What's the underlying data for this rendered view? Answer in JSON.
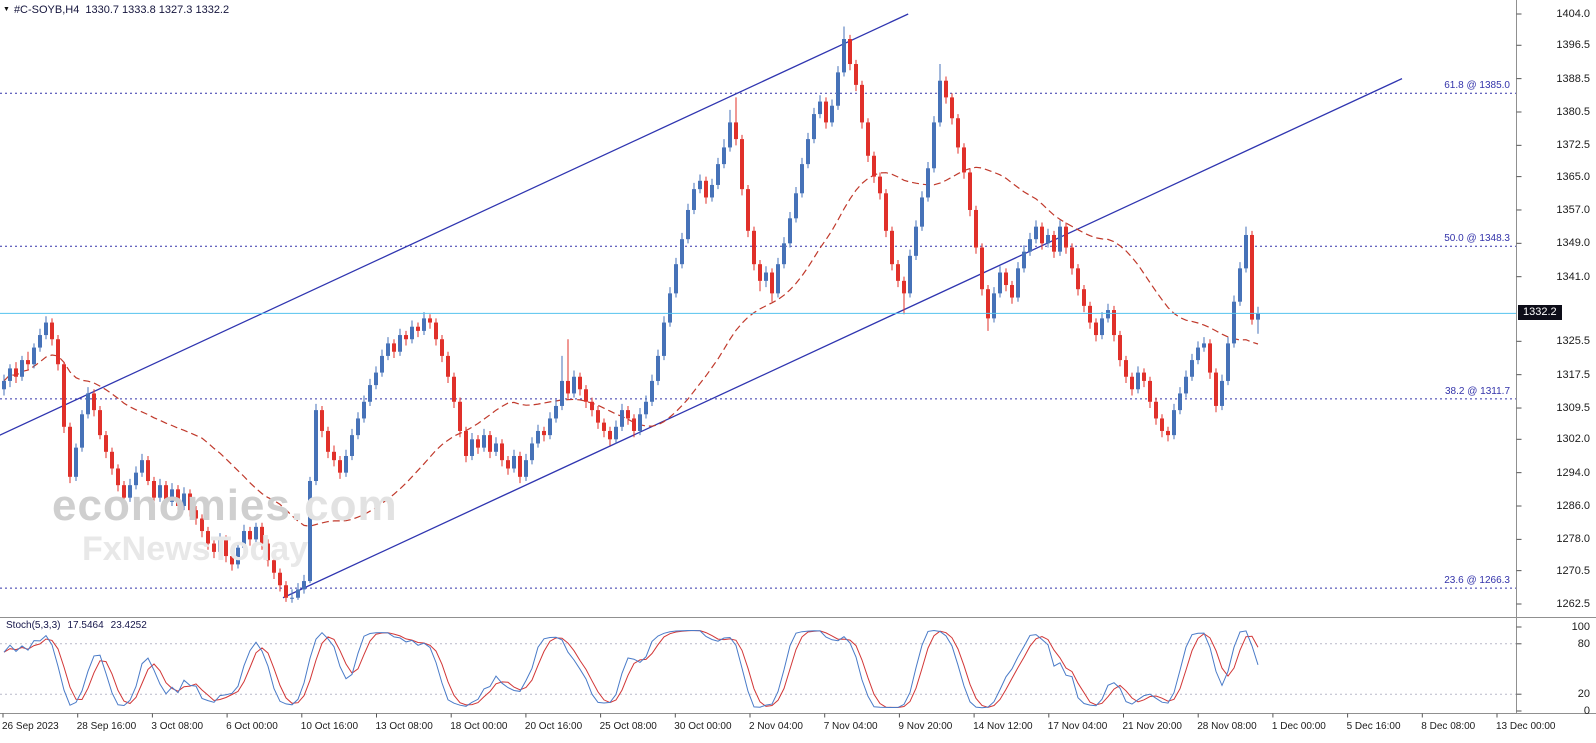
{
  "window": {
    "symbol_label": "#C-SOYB,H4",
    "ohlc_label": "1330.7 1333.8 1327.3 1332.2",
    "open": "1330.7",
    "high": "1333.8",
    "low": "1327.3",
    "close": "1332.2"
  },
  "watermark": {
    "brand": "economies",
    "brand_suffix": ".com",
    "subtitle": "FxNewsToday"
  },
  "price_axis": {
    "ticks": [
      1404.0,
      1396.5,
      1388.5,
      1380.5,
      1372.5,
      1365.0,
      1357.0,
      1349.0,
      1341.0,
      1325.5,
      1317.5,
      1309.5,
      1302.0,
      1294.0,
      1286.0,
      1278.0,
      1270.5,
      1262.5
    ],
    "current_tag": "1332.2"
  },
  "time_axis": {
    "labels": [
      "26 Sep 2023",
      "28 Sep 16:00",
      "3 Oct 08:00",
      "6 Oct 00:00",
      "10 Oct 16:00",
      "13 Oct 08:00",
      "18 Oct 00:00",
      "20 Oct 16:00",
      "25 Oct 08:00",
      "30 Oct 00:00",
      "2 Nov 04:00",
      "7 Nov 04:00",
      "9 Nov 20:00",
      "14 Nov 12:00",
      "17 Nov 04:00",
      "21 Nov 20:00",
      "28 Nov 08:00",
      "1 Dec 00:00",
      "5 Dec 16:00",
      "8 Dec 08:00",
      "13 Dec 00:00"
    ]
  },
  "stoch_panel": {
    "label": "Stoch(5,3,3)",
    "k_value": "17.5464",
    "d_value": "23.4252",
    "axis": [
      100,
      80,
      20,
      0
    ]
  },
  "colors": {
    "up": "#4672b8",
    "down": "#e0302a",
    "ma": "#c0392b",
    "channel": "#2f35b0",
    "fib": "#3333aa",
    "price_line": "#55c3ee",
    "tag_bg": "#0d0d18",
    "tag_text": "#ffffff",
    "stoch_k": "#4a7bc8",
    "stoch_d": "#d23737",
    "axis_text": "#1c1c1c",
    "separator": "#909090",
    "watermark1": "#cfcfcf",
    "watermark2": "#e8e8e8"
  },
  "chart_data": {
    "type": "candlestick",
    "symbol": "#C-SOYB",
    "timeframe": "H4",
    "title": "#C-SOYB,H4 1330.7 1333.8 1327.3 1332.2",
    "ylim": [
      1262.5,
      1404.0
    ],
    "current_price": 1332.2,
    "legend_position": "none",
    "grid": false,
    "fib_levels": [
      {
        "label": "61.8 @ 1385.0",
        "ratio": 61.8,
        "price": 1385.0
      },
      {
        "label": "50.0 @ 1348.3",
        "ratio": 50.0,
        "price": 1348.3
      },
      {
        "label": "38.2 @ 1311.7",
        "ratio": 38.2,
        "price": 1311.7
      },
      {
        "label": "23.6 @ 1266.3",
        "ratio": 23.6,
        "price": 1266.3
      }
    ],
    "trendlines": [
      {
        "name": "channel-upper",
        "i1": -0.7,
        "price1": 1303.0,
        "i2": 150.7,
        "price2": 1404.0
      },
      {
        "name": "channel-lower",
        "i1": 46.5,
        "price1": 1264.0,
        "i2": 233.0,
        "price2": 1388.5
      }
    ],
    "moving_average": {
      "method": "simple",
      "period": 34,
      "style": "dashed"
    },
    "stochastic": {
      "k_period": 5,
      "slowing": 3,
      "d_period": 3,
      "current_k": 17.5464,
      "current_d": 23.4252,
      "levels": [
        20,
        80
      ]
    },
    "candles": [
      [
        1314,
        1317.5,
        1312.5,
        1316
      ],
      [
        1316,
        1320,
        1314.5,
        1319
      ],
      [
        1319,
        1320.5,
        1315.5,
        1317
      ],
      [
        1317,
        1322,
        1316,
        1321
      ],
      [
        1321,
        1323,
        1318.5,
        1320
      ],
      [
        1320,
        1325,
        1319,
        1324
      ],
      [
        1324,
        1328.5,
        1323,
        1327
      ],
      [
        1327,
        1331.5,
        1326,
        1330
      ],
      [
        1330,
        1331,
        1324.5,
        1326
      ],
      [
        1326,
        1327,
        1318.5,
        1320
      ],
      [
        1320,
        1320.5,
        1303.5,
        1305
      ],
      [
        1305,
        1306,
        1291.5,
        1293
      ],
      [
        1293,
        1301,
        1292,
        1300
      ],
      [
        1300,
        1309,
        1299,
        1308
      ],
      [
        1308,
        1314.5,
        1307,
        1313
      ],
      [
        1313,
        1314,
        1307.5,
        1309
      ],
      [
        1309,
        1310,
        1302,
        1303
      ],
      [
        1303,
        1304,
        1297.5,
        1299
      ],
      [
        1299,
        1300,
        1293.5,
        1295
      ],
      [
        1295,
        1296,
        1289.5,
        1291
      ],
      [
        1291,
        1292,
        1286.5,
        1288
      ],
      [
        1288,
        1292.5,
        1287,
        1291
      ],
      [
        1291,
        1295.5,
        1290,
        1294
      ],
      [
        1294,
        1298.5,
        1293,
        1297
      ],
      [
        1297,
        1298,
        1291,
        1292
      ],
      [
        1292,
        1293,
        1286.5,
        1288
      ],
      [
        1288,
        1292.5,
        1287,
        1291
      ],
      [
        1291,
        1292,
        1285.5,
        1287
      ],
      [
        1287,
        1291.5,
        1286,
        1290
      ],
      [
        1290,
        1291,
        1284.5,
        1286
      ],
      [
        1286,
        1290.5,
        1285,
        1289
      ],
      [
        1289,
        1290,
        1283.5,
        1285
      ],
      [
        1285,
        1286,
        1281.5,
        1283
      ],
      [
        1283,
        1284,
        1278.5,
        1280
      ],
      [
        1280,
        1281,
        1275.5,
        1277
      ],
      [
        1277,
        1278,
        1273.5,
        1275
      ],
      [
        1275,
        1279.5,
        1274,
        1278
      ],
      [
        1278,
        1279,
        1272.5,
        1274
      ],
      [
        1274,
        1275,
        1270.5,
        1272
      ],
      [
        1272,
        1277,
        1271,
        1276
      ],
      [
        1276,
        1281.5,
        1275,
        1280
      ],
      [
        1280,
        1281,
        1276.5,
        1278
      ],
      [
        1278,
        1282,
        1277,
        1281
      ],
      [
        1281,
        1282,
        1275.5,
        1277
      ],
      [
        1277,
        1278,
        1271.5,
        1273
      ],
      [
        1273,
        1274,
        1268.5,
        1270
      ],
      [
        1270,
        1271,
        1265.5,
        1267
      ],
      [
        1267,
        1268,
        1263,
        1264
      ],
      [
        1264,
        1266,
        1262.8,
        1264
      ],
      [
        1264,
        1267.5,
        1263.5,
        1266
      ],
      [
        1266,
        1269.5,
        1265,
        1268
      ],
      [
        1268,
        1293,
        1267.5,
        1292
      ],
      [
        1292,
        1310.5,
        1291,
        1309
      ],
      [
        1309,
        1310,
        1302.5,
        1304
      ],
      [
        1304,
        1305,
        1297.5,
        1299
      ],
      [
        1299,
        1300.5,
        1295.5,
        1297
      ],
      [
        1297,
        1298,
        1292.5,
        1294
      ],
      [
        1294,
        1299.5,
        1293,
        1298
      ],
      [
        1298,
        1304.5,
        1297,
        1303
      ],
      [
        1303,
        1308.5,
        1302,
        1307
      ],
      [
        1307,
        1312.5,
        1306,
        1311
      ],
      [
        1311,
        1316.5,
        1310,
        1315
      ],
      [
        1315,
        1319.5,
        1314,
        1318
      ],
      [
        1318,
        1323.5,
        1317,
        1322
      ],
      [
        1322,
        1326.5,
        1321,
        1325
      ],
      [
        1325,
        1326,
        1321.5,
        1323
      ],
      [
        1323,
        1328.5,
        1322,
        1327
      ],
      [
        1327,
        1328,
        1324.5,
        1326
      ],
      [
        1326,
        1330.5,
        1325,
        1329
      ],
      [
        1329,
        1330,
        1326.5,
        1328
      ],
      [
        1328,
        1332.5,
        1327,
        1331
      ],
      [
        1331,
        1332,
        1328.5,
        1330
      ],
      [
        1330,
        1331,
        1324.5,
        1326
      ],
      [
        1326,
        1327,
        1320.5,
        1322
      ],
      [
        1322,
        1323,
        1315.5,
        1317
      ],
      [
        1317,
        1318,
        1309.5,
        1311
      ],
      [
        1311,
        1312,
        1302.5,
        1304
      ],
      [
        1304,
        1305,
        1296.5,
        1298
      ],
      [
        1298,
        1303.5,
        1297,
        1302
      ],
      [
        1302,
        1303,
        1298.5,
        1300
      ],
      [
        1300,
        1304.5,
        1299,
        1303
      ],
      [
        1303,
        1304,
        1297.5,
        1299
      ],
      [
        1299,
        1302.5,
        1298,
        1301
      ],
      [
        1301,
        1302,
        1295.5,
        1297
      ],
      [
        1297,
        1298,
        1293.5,
        1295
      ],
      [
        1295,
        1299.5,
        1294,
        1298
      ],
      [
        1298,
        1299,
        1291.5,
        1293
      ],
      [
        1293,
        1298.5,
        1292,
        1297
      ],
      [
        1297,
        1302.5,
        1296,
        1301
      ],
      [
        1301,
        1305.5,
        1300,
        1304
      ],
      [
        1304,
        1305,
        1301.5,
        1303
      ],
      [
        1303,
        1308.5,
        1302,
        1307
      ],
      [
        1307,
        1311.5,
        1306,
        1310
      ],
      [
        1310,
        1322,
        1309,
        1316
      ],
      [
        1316,
        1326,
        1311.5,
        1313
      ],
      [
        1313,
        1318.5,
        1312,
        1317
      ],
      [
        1317,
        1318,
        1312.5,
        1314
      ],
      [
        1314,
        1315,
        1309.5,
        1311
      ],
      [
        1311,
        1312,
        1307.5,
        1309
      ],
      [
        1309,
        1310,
        1304.5,
        1306
      ],
      [
        1306,
        1307,
        1302.5,
        1304
      ],
      [
        1304,
        1305,
        1300.5,
        1302
      ],
      [
        1302,
        1306.5,
        1301,
        1305
      ],
      [
        1305,
        1310.5,
        1304,
        1309
      ],
      [
        1309,
        1310,
        1305.5,
        1307
      ],
      [
        1307,
        1308,
        1302.5,
        1304
      ],
      [
        1304,
        1309.5,
        1303,
        1308
      ],
      [
        1308,
        1312.5,
        1307,
        1311
      ],
      [
        1311,
        1317.5,
        1310,
        1316
      ],
      [
        1316,
        1323.5,
        1315,
        1322
      ],
      [
        1322,
        1331.5,
        1321,
        1330
      ],
      [
        1330,
        1338.5,
        1329,
        1337
      ],
      [
        1337,
        1345.5,
        1336,
        1344
      ],
      [
        1344,
        1351.5,
        1343,
        1350
      ],
      [
        1350,
        1358.5,
        1349,
        1357
      ],
      [
        1357,
        1363.5,
        1356,
        1362
      ],
      [
        1362,
        1365.5,
        1361,
        1364
      ],
      [
        1364,
        1365,
        1358.5,
        1360
      ],
      [
        1360,
        1364.5,
        1359,
        1363
      ],
      [
        1363,
        1369.5,
        1362,
        1368
      ],
      [
        1368,
        1374,
        1367,
        1372
      ],
      [
        1372,
        1381,
        1371,
        1378
      ],
      [
        1378,
        1384,
        1372.5,
        1374
      ],
      [
        1374,
        1375,
        1360.5,
        1362
      ],
      [
        1362,
        1363,
        1350.5,
        1352
      ],
      [
        1352,
        1353,
        1342.5,
        1344
      ],
      [
        1344,
        1345,
        1337.5,
        1340
      ],
      [
        1340,
        1343.5,
        1338.5,
        1342
      ],
      [
        1342,
        1343,
        1335,
        1337
      ],
      [
        1337,
        1345.5,
        1336,
        1344
      ],
      [
        1344,
        1350.5,
        1343,
        1349
      ],
      [
        1349,
        1356.5,
        1348,
        1355
      ],
      [
        1355,
        1362.5,
        1354,
        1361
      ],
      [
        1361,
        1369.5,
        1360,
        1368
      ],
      [
        1368,
        1375.5,
        1367,
        1374
      ],
      [
        1374,
        1381.5,
        1373,
        1380
      ],
      [
        1380,
        1384.5,
        1379,
        1383
      ],
      [
        1383,
        1384,
        1376.5,
        1378
      ],
      [
        1378,
        1383.5,
        1377,
        1382
      ],
      [
        1382,
        1391.5,
        1381,
        1390
      ],
      [
        1390,
        1401,
        1389,
        1398
      ],
      [
        1398,
        1399,
        1390.5,
        1392
      ],
      [
        1392,
        1393,
        1385.5,
        1387
      ],
      [
        1387,
        1388,
        1376.5,
        1378
      ],
      [
        1378,
        1379,
        1368.5,
        1370
      ],
      [
        1370,
        1371,
        1363.5,
        1365
      ],
      [
        1365,
        1366,
        1359.5,
        1361
      ],
      [
        1361,
        1362,
        1350.5,
        1352
      ],
      [
        1352,
        1353,
        1342.5,
        1344
      ],
      [
        1344,
        1345,
        1338.5,
        1340
      ],
      [
        1340,
        1341,
        1332,
        1337
      ],
      [
        1337,
        1347.5,
        1336,
        1346
      ],
      [
        1346,
        1354.5,
        1345,
        1353
      ],
      [
        1353,
        1361.5,
        1352,
        1360
      ],
      [
        1360,
        1368.5,
        1359,
        1367
      ],
      [
        1367,
        1379.5,
        1366,
        1378
      ],
      [
        1378,
        1392,
        1377,
        1388
      ],
      [
        1388,
        1389,
        1382.5,
        1384
      ],
      [
        1384,
        1385,
        1377.5,
        1379
      ],
      [
        1379,
        1380,
        1370.5,
        1372
      ],
      [
        1372,
        1373,
        1364.5,
        1366
      ],
      [
        1366,
        1367,
        1355.5,
        1357
      ],
      [
        1357,
        1358,
        1346.5,
        1348
      ],
      [
        1348,
        1349,
        1336.5,
        1338
      ],
      [
        1338,
        1339,
        1328,
        1331
      ],
      [
        1331,
        1338.5,
        1330,
        1337
      ],
      [
        1337,
        1343.5,
        1336,
        1342
      ],
      [
        1342,
        1343,
        1337.5,
        1339
      ],
      [
        1339,
        1340,
        1334.5,
        1336
      ],
      [
        1336,
        1344.5,
        1335,
        1343
      ],
      [
        1343,
        1348.5,
        1342,
        1347
      ],
      [
        1347,
        1351.5,
        1346,
        1350
      ],
      [
        1350,
        1354.5,
        1349,
        1353
      ],
      [
        1353,
        1354,
        1347.5,
        1349
      ],
      [
        1349,
        1352.5,
        1348,
        1351
      ],
      [
        1351,
        1352,
        1345.5,
        1347
      ],
      [
        1347,
        1354.5,
        1346,
        1353
      ],
      [
        1353,
        1354,
        1346.5,
        1348
      ],
      [
        1348,
        1349,
        1341.5,
        1343
      ],
      [
        1343,
        1344,
        1336.5,
        1338
      ],
      [
        1338,
        1339,
        1332.5,
        1334
      ],
      [
        1334,
        1335,
        1328.5,
        1330
      ],
      [
        1330,
        1331,
        1325.5,
        1327
      ],
      [
        1327,
        1332.5,
        1326,
        1331
      ],
      [
        1331,
        1334.5,
        1330,
        1333
      ],
      [
        1333,
        1334,
        1325.5,
        1327
      ],
      [
        1327,
        1328,
        1319.5,
        1321
      ],
      [
        1321,
        1322,
        1315.5,
        1317
      ],
      [
        1317,
        1318,
        1312.5,
        1314
      ],
      [
        1314,
        1319.5,
        1313,
        1318
      ],
      [
        1318,
        1319,
        1314.5,
        1316
      ],
      [
        1316,
        1317,
        1309.5,
        1311
      ],
      [
        1311,
        1312,
        1305.5,
        1307
      ],
      [
        1307,
        1308,
        1302.5,
        1304
      ],
      [
        1304,
        1305,
        1301.5,
        1303
      ],
      [
        1303,
        1310.5,
        1302,
        1309
      ],
      [
        1309,
        1314.5,
        1308,
        1313
      ],
      [
        1313,
        1318.5,
        1312,
        1317
      ],
      [
        1317,
        1322.5,
        1316,
        1321
      ],
      [
        1321,
        1325.5,
        1320,
        1324
      ],
      [
        1324,
        1326.5,
        1323,
        1325
      ],
      [
        1325,
        1326,
        1316.5,
        1318
      ],
      [
        1318,
        1319,
        1308.5,
        1310
      ],
      [
        1310,
        1317.5,
        1309,
        1316
      ],
      [
        1316,
        1326.5,
        1315,
        1325
      ],
      [
        1325,
        1336.5,
        1324,
        1335
      ],
      [
        1335,
        1344.5,
        1334,
        1343
      ],
      [
        1343,
        1353,
        1342,
        1351
      ],
      [
        1351,
        1352,
        1329.5,
        1330.7
      ],
      [
        1330.7,
        1333.8,
        1327.3,
        1332.2
      ]
    ]
  }
}
